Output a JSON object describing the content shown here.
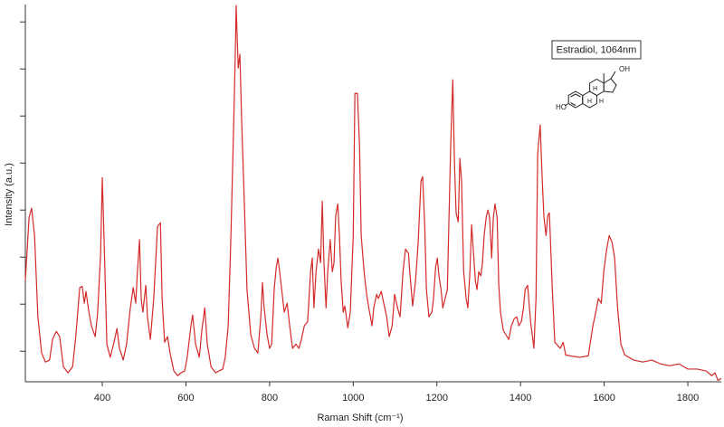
{
  "chart_data": {
    "type": "line",
    "xlabel": "Raman Shift (cm⁻¹)",
    "ylabel": "Intensity (a.u.)",
    "annotation": "Estradiol, 1064nm",
    "molecule_labels": [
      "OH",
      "HO",
      "H",
      "H",
      "H"
    ],
    "xlim": [
      216,
      1880
    ],
    "xticks": [
      400,
      600,
      800,
      1000,
      1200,
      1400,
      1600,
      1800
    ],
    "ylim": [
      0.35,
      8.37
    ],
    "yticks": [
      1,
      2,
      3,
      4,
      5,
      6,
      7,
      8
    ],
    "ytick_labels": false,
    "x": [
      216,
      225,
      231,
      238,
      246,
      255,
      264,
      274,
      281,
      290,
      298,
      307,
      318,
      329,
      337,
      346,
      352,
      357,
      361,
      368,
      374,
      383,
      389,
      396,
      400,
      404,
      411,
      419,
      428,
      435,
      441,
      450,
      458,
      467,
      474,
      480,
      484,
      489,
      493,
      497,
      504,
      508,
      515,
      523,
      532,
      539,
      543,
      549,
      556,
      562,
      571,
      580,
      588,
      597,
      603,
      612,
      616,
      623,
      632,
      638,
      645,
      651,
      660,
      671,
      679,
      688,
      694,
      701,
      707,
      714,
      718,
      720,
      725,
      729,
      733,
      740,
      746,
      755,
      764,
      772,
      779,
      783,
      787,
      794,
      800,
      805,
      811,
      816,
      820,
      824,
      829,
      835,
      842,
      848,
      855,
      863,
      870,
      876,
      883,
      891,
      898,
      902,
      906,
      911,
      917,
      922,
      926,
      930,
      935,
      939,
      945,
      950,
      954,
      958,
      963,
      967,
      971,
      976,
      980,
      987,
      993,
      1000,
      1004,
      1010,
      1015,
      1019,
      1026,
      1032,
      1039,
      1045,
      1049,
      1056,
      1060,
      1067,
      1073,
      1080,
      1086,
      1093,
      1099,
      1106,
      1112,
      1119,
      1125,
      1132,
      1136,
      1142,
      1149,
      1155,
      1162,
      1166,
      1171,
      1175,
      1181,
      1188,
      1192,
      1197,
      1201,
      1205,
      1210,
      1214,
      1218,
      1225,
      1229,
      1233,
      1238,
      1242,
      1246,
      1251,
      1255,
      1259,
      1264,
      1270,
      1274,
      1279,
      1283,
      1287,
      1292,
      1296,
      1300,
      1305,
      1309,
      1313,
      1318,
      1322,
      1326,
      1331,
      1335,
      1339,
      1344,
      1348,
      1352,
      1359,
      1365,
      1372,
      1378,
      1385,
      1391,
      1396,
      1402,
      1407,
      1411,
      1417,
      1424,
      1428,
      1432,
      1437,
      1441,
      1447,
      1452,
      1456,
      1461,
      1465,
      1469,
      1476,
      1482,
      1489,
      1495,
      1502,
      1508,
      1519,
      1541,
      1562,
      1573,
      1580,
      1586,
      1593,
      1599,
      1606,
      1612,
      1619,
      1625,
      1632,
      1640,
      1649,
      1671,
      1692,
      1714,
      1735,
      1757,
      1779,
      1800,
      1822,
      1844,
      1857,
      1865,
      1872,
      1880
    ],
    "series": [
      {
        "color": "#d42a2a",
        "values": [
          2.5,
          3.85,
          4.04,
          3.46,
          1.73,
          0.96,
          0.77,
          0.81,
          1.25,
          1.42,
          1.31,
          0.67,
          0.54,
          0.67,
          1.35,
          2.35,
          2.38,
          2.02,
          2.27,
          1.83,
          1.54,
          1.31,
          1.83,
          3.08,
          4.69,
          3.46,
          1.15,
          0.87,
          1.19,
          1.48,
          1.06,
          0.81,
          1.15,
          1.92,
          2.35,
          2.02,
          2.69,
          3.37,
          2.12,
          1.83,
          2.4,
          1.73,
          1.25,
          2.12,
          3.65,
          3.73,
          2.12,
          1.19,
          1.31,
          0.96,
          0.58,
          0.48,
          0.54,
          0.58,
          0.87,
          1.54,
          1.77,
          1.15,
          0.87,
          1.44,
          1.92,
          1.15,
          0.67,
          0.54,
          0.58,
          0.62,
          0.87,
          1.54,
          3.27,
          5.77,
          7.31,
          8.35,
          7.02,
          7.31,
          5.96,
          4.04,
          2.31,
          1.35,
          1.06,
          0.96,
          1.73,
          2.46,
          1.92,
          1.35,
          1.06,
          1.15,
          2.31,
          2.79,
          2.98,
          2.69,
          2.31,
          1.83,
          2.02,
          1.54,
          1.06,
          1.15,
          1.06,
          1.25,
          1.54,
          1.63,
          2.69,
          2.98,
          1.92,
          2.69,
          3.17,
          2.88,
          4.19,
          2.88,
          1.92,
          2.69,
          3.37,
          2.69,
          2.88,
          3.88,
          4.13,
          3.46,
          2.5,
          1.83,
          1.96,
          1.5,
          1.83,
          3.46,
          6.48,
          6.48,
          5.38,
          3.46,
          2.69,
          2.21,
          1.83,
          1.54,
          1.92,
          2.21,
          2.12,
          2.27,
          2.02,
          1.73,
          1.31,
          1.54,
          2.21,
          1.92,
          1.73,
          2.69,
          3.17,
          3.08,
          2.6,
          1.96,
          2.5,
          3.27,
          4.62,
          4.71,
          3.65,
          2.31,
          1.73,
          1.83,
          2.12,
          2.79,
          2.98,
          2.6,
          2.31,
          1.92,
          2.06,
          2.31,
          3.85,
          5.38,
          6.77,
          5.0,
          3.94,
          3.75,
          5.1,
          4.62,
          2.69,
          2.12,
          1.92,
          2.69,
          3.69,
          3.17,
          2.5,
          2.31,
          2.69,
          2.6,
          2.88,
          3.46,
          3.85,
          4.0,
          3.85,
          2.98,
          3.85,
          4.13,
          3.85,
          2.4,
          1.83,
          1.44,
          1.35,
          1.25,
          1.54,
          1.69,
          1.73,
          1.54,
          1.63,
          1.92,
          2.31,
          2.4,
          1.63,
          1.35,
          1.06,
          2.12,
          5.19,
          5.81,
          4.62,
          3.85,
          3.46,
          3.88,
          3.94,
          2.31,
          1.19,
          1.12,
          1.06,
          1.19,
          0.92,
          0.9,
          0.87,
          0.9,
          1.54,
          1.83,
          2.12,
          2.02,
          2.69,
          3.17,
          3.46,
          3.31,
          2.98,
          1.92,
          1.15,
          0.92,
          0.81,
          0.77,
          0.81,
          0.73,
          0.69,
          0.73,
          0.62,
          0.62,
          0.58,
          0.48,
          0.54,
          0.38,
          0.42
        ]
      }
    ]
  }
}
